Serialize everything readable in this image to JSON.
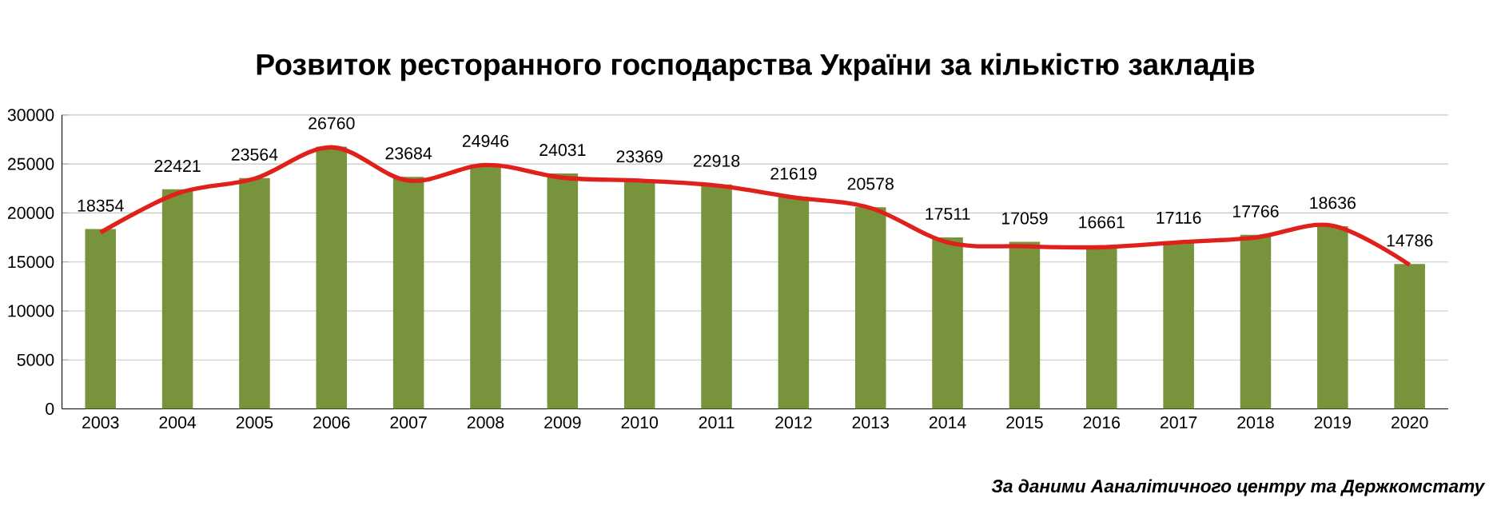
{
  "chart_data": {
    "type": "bar",
    "title": "Розвиток ресторанного господарства України за кількістю закладів",
    "categories": [
      "2003",
      "2004",
      "2005",
      "2006",
      "2007",
      "2008",
      "2009",
      "2010",
      "2011",
      "2012",
      "2013",
      "2014",
      "2015",
      "2016",
      "2017",
      "2018",
      "2019",
      "2020"
    ],
    "series": [
      {
        "color": "#77933c",
        "values": [
          18354,
          22421,
          23564,
          26760,
          23684,
          24946,
          24031,
          23369,
          22918,
          21619,
          20578,
          17511,
          17059,
          16661,
          17116,
          17766,
          18636,
          14786
        ],
        "value_labels": [
          "18354",
          "22421",
          "23564",
          "26760",
          "23684",
          "24946",
          "24031",
          "23369",
          "22918",
          "21619",
          "20578",
          "17511",
          "17059",
          "16661",
          "17116",
          "17766",
          "18636",
          "14786"
        ]
      },
      {
        "type": "line",
        "color": "#e0201b",
        "values": [
          18000,
          22000,
          23500,
          26700,
          23300,
          24900,
          23600,
          23300,
          22800,
          21600,
          20500,
          17000,
          16600,
          16500,
          17000,
          17500,
          18700,
          14700
        ]
      }
    ],
    "ylim": [
      0,
      30000
    ],
    "yticks": [
      0,
      5000,
      10000,
      15000,
      20000,
      25000,
      30000
    ],
    "grid": "y",
    "annotations": [
      "За даними Ааналітичного центру та Держкомстату"
    ]
  }
}
